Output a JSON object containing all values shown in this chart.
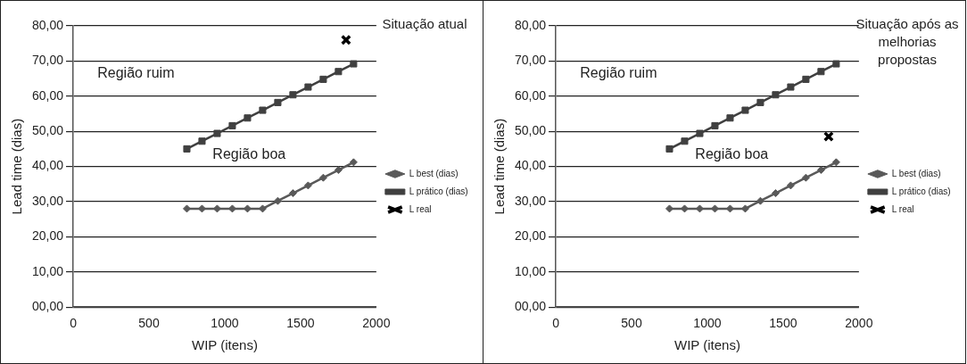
{
  "chart_data": [
    {
      "type": "line",
      "title": "Situação atual",
      "xlabel": "WIP (itens)",
      "ylabel": "Lead time (dias)",
      "x": [
        750,
        850,
        950,
        1050,
        1150,
        1250,
        1350,
        1450,
        1550,
        1650,
        1750,
        1850
      ],
      "series": [
        {
          "name": "L best (dias)",
          "color": "#595959",
          "marker": "diamond",
          "values": [
            28,
            28,
            28,
            28,
            28,
            28,
            30.2,
            32.4,
            34.6,
            36.8,
            39,
            41.2
          ]
        },
        {
          "name": "L prático (dias)",
          "color": "#404040",
          "marker": "square",
          "values": [
            45,
            47.2,
            49.4,
            51.6,
            53.8,
            56,
            58.2,
            60.4,
            62.6,
            64.8,
            67,
            69.2
          ]
        },
        {
          "name": "L real",
          "type": "scatter",
          "color": "#000000",
          "marker": "cross",
          "x": [
            1800
          ],
          "values": [
            76
          ]
        }
      ],
      "xlim": [
        0,
        2000
      ],
      "xticks": [
        0,
        500,
        1000,
        1500,
        2000
      ],
      "ylim": [
        0,
        80
      ],
      "yticks": [
        {
          "value": 0,
          "label": "00,00"
        },
        {
          "value": 10,
          "label": "10,00"
        },
        {
          "value": 20,
          "label": "20,00"
        },
        {
          "value": 30,
          "label": "30,00"
        },
        {
          "value": 40,
          "label": "40,00"
        },
        {
          "value": 50,
          "label": "50,00"
        },
        {
          "value": 60,
          "label": "60,00"
        },
        {
          "value": 70,
          "label": "70,00"
        },
        {
          "value": 80,
          "label": "80,00"
        }
      ],
      "grid": "y",
      "legend": "right",
      "annotations": [
        "Região ruim",
        "Região boa"
      ]
    },
    {
      "type": "line",
      "title": "Situação após as melhorias propostas",
      "xlabel": "WIP (itens)",
      "ylabel": "Lead time (dias)",
      "x": [
        750,
        850,
        950,
        1050,
        1150,
        1250,
        1350,
        1450,
        1550,
        1650,
        1750,
        1850
      ],
      "series": [
        {
          "name": "L best (dias)",
          "color": "#595959",
          "marker": "diamond",
          "values": [
            28,
            28,
            28,
            28,
            28,
            28,
            30.2,
            32.4,
            34.6,
            36.8,
            39,
            41.2
          ]
        },
        {
          "name": "L prático (dias)",
          "color": "#404040",
          "marker": "square",
          "values": [
            45,
            47.2,
            49.4,
            51.6,
            53.8,
            56,
            58.2,
            60.4,
            62.6,
            64.8,
            67,
            69.2
          ]
        },
        {
          "name": "L real",
          "type": "scatter",
          "color": "#000000",
          "marker": "cross",
          "x": [
            1800
          ],
          "values": [
            48.5
          ]
        }
      ],
      "xlim": [
        0,
        2000
      ],
      "xticks": [
        0,
        500,
        1000,
        1500,
        2000
      ],
      "ylim": [
        0,
        80
      ],
      "yticks": [
        {
          "value": 0,
          "label": "00,00"
        },
        {
          "value": 10,
          "label": "10,00"
        },
        {
          "value": 20,
          "label": "20,00"
        },
        {
          "value": 30,
          "label": "30,00"
        },
        {
          "value": 40,
          "label": "40,00"
        },
        {
          "value": 50,
          "label": "50,00"
        },
        {
          "value": 60,
          "label": "60,00"
        },
        {
          "value": 70,
          "label": "70,00"
        },
        {
          "value": 80,
          "label": "80,00"
        }
      ],
      "grid": "y",
      "legend": "right",
      "annotations": [
        "Região ruim",
        "Região boa"
      ]
    }
  ]
}
